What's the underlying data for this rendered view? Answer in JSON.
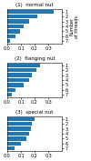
{
  "chart_data": [
    {
      "type": "bar",
      "orientation": "horizontal",
      "title": "(1)  normal nut",
      "ylabel": "Number\nof threads",
      "categories": [
        "1",
        "2",
        "3",
        "4",
        "5",
        "6",
        "7"
      ],
      "values": [
        0.34,
        0.22,
        0.16,
        0.12,
        0.09,
        0.06,
        0.02
      ],
      "xlim": [
        0,
        0.4
      ],
      "xticks": [
        0.0,
        0.1,
        0.2,
        0.3
      ],
      "grid": false
    },
    {
      "type": "bar",
      "orientation": "horizontal",
      "title": "(2)  flanging nut",
      "categories": [
        "1",
        "2",
        "3",
        "4",
        "5",
        "6",
        "7"
      ],
      "values": [
        0.24,
        0.21,
        0.18,
        0.16,
        0.12,
        0.06,
        0.03
      ],
      "xlim": [
        0,
        0.4
      ],
      "xticks": [
        0.0,
        0.1,
        0.2,
        0.3
      ],
      "grid": false
    },
    {
      "type": "bar",
      "orientation": "horizontal",
      "title": "(3)  special nut",
      "categories": [
        "1",
        "2",
        "3",
        "4",
        "5",
        "6",
        "7"
      ],
      "values": [
        0.2,
        0.18,
        0.17,
        0.16,
        0.14,
        0.1,
        0.05
      ],
      "xlim": [
        0,
        0.4
      ],
      "xticks": [
        0.0,
        0.1,
        0.2,
        0.3
      ],
      "grid": false
    }
  ]
}
